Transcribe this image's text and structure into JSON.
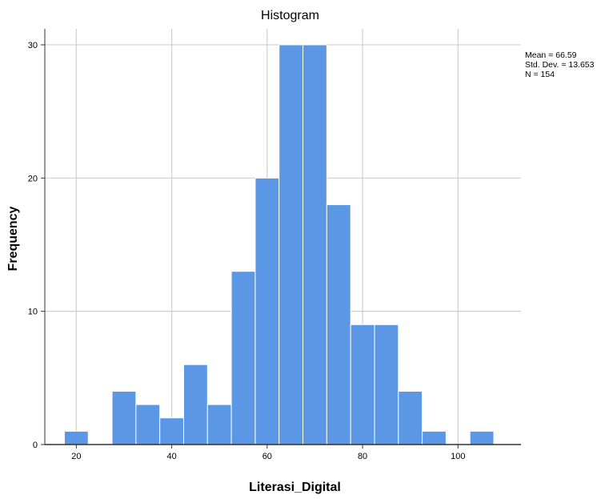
{
  "chart_data": {
    "type": "bar",
    "title": "Histogram",
    "xlabel": "Literasi_Digital",
    "ylabel": "Frequency",
    "bin_width": 5,
    "bins": [
      {
        "start": 17.5,
        "end": 22.5,
        "count": 1
      },
      {
        "start": 22.5,
        "end": 27.5,
        "count": 0
      },
      {
        "start": 27.5,
        "end": 32.5,
        "count": 4
      },
      {
        "start": 32.5,
        "end": 37.5,
        "count": 3
      },
      {
        "start": 37.5,
        "end": 42.5,
        "count": 2
      },
      {
        "start": 42.5,
        "end": 47.5,
        "count": 6
      },
      {
        "start": 47.5,
        "end": 52.5,
        "count": 3
      },
      {
        "start": 52.5,
        "end": 57.5,
        "count": 13
      },
      {
        "start": 57.5,
        "end": 62.5,
        "count": 20
      },
      {
        "start": 62.5,
        "end": 67.5,
        "count": 30
      },
      {
        "start": 67.5,
        "end": 72.5,
        "count": 30
      },
      {
        "start": 72.5,
        "end": 77.5,
        "count": 18
      },
      {
        "start": 77.5,
        "end": 82.5,
        "count": 9
      },
      {
        "start": 82.5,
        "end": 87.5,
        "count": 9
      },
      {
        "start": 87.5,
        "end": 92.5,
        "count": 4
      },
      {
        "start": 92.5,
        "end": 97.5,
        "count": 1
      },
      {
        "start": 97.5,
        "end": 102.5,
        "count": 0
      },
      {
        "start": 102.5,
        "end": 107.5,
        "count": 1
      }
    ],
    "xlim": [
      13.4,
      113.2
    ],
    "ylim": [
      0,
      31.2
    ],
    "x_ticks": [
      20,
      40,
      60,
      80,
      100
    ],
    "x_tick_labels": [
      "20",
      "40",
      "60",
      "80",
      "100"
    ],
    "y_ticks": [
      0,
      10,
      20,
      30
    ],
    "y_tick_labels": [
      "0",
      "10",
      "20",
      "30"
    ],
    "grid": "horizontal and vertical",
    "legend": "none",
    "stats": {
      "mean": "Mean = 66.59",
      "std_dev": "Std. Dev. = 13.653",
      "n": "N = 154",
      "placement": "top-right"
    },
    "colors": {
      "bar_fill": "#5b97e4",
      "bar_stroke": "#ffffff",
      "grid": "#cfcfcf",
      "axis": "#333333",
      "background": "#ffffff"
    }
  }
}
